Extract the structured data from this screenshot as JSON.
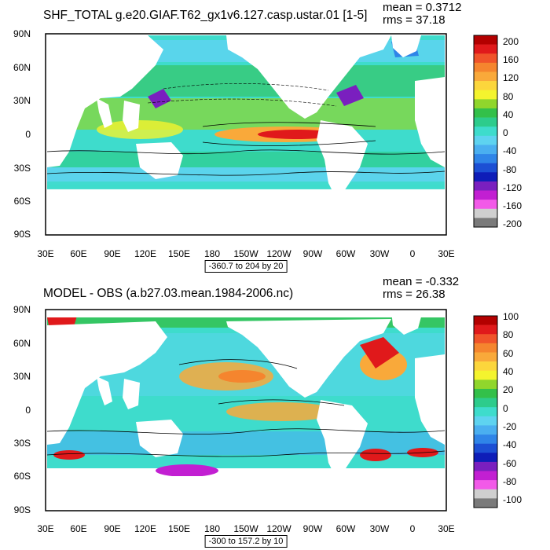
{
  "panels": [
    {
      "title": "SHF_TOTAL g.e20.GIAF.T62_gx1v6.127.casp.ustar.01 [1-5]",
      "mean_text": "mean = 0.3712",
      "rms_text": "rms = 37.18",
      "range_text": "-360.7 to 204 by 20",
      "colorbar": {
        "labels": [
          "200",
          "160",
          "120",
          "80",
          "40",
          "0",
          "-40",
          "-80",
          "-120",
          "-160",
          "-200"
        ],
        "colors": [
          "#b30000",
          "#e0191b",
          "#f0532a",
          "#f5852e",
          "#f9a93a",
          "#fcd63c",
          "#f4f42e",
          "#90d62c",
          "#33c04a",
          "#2dcc8c",
          "#3edccc",
          "#5ed3f0",
          "#4aaff0",
          "#2f85e8",
          "#1c4fd4",
          "#0e1db8",
          "#7a1fbf",
          "#c21fd2",
          "#f25ae8",
          "#cfcfcf",
          "#7a7a7a"
        ]
      }
    },
    {
      "title": "MODEL - OBS (a.b27.03.mean.1984-2006.nc)",
      "mean_text": "mean = -0.332",
      "rms_text": "rms = 26.38",
      "range_text": "-300 to 157.2 by 10",
      "colorbar": {
        "labels": [
          "100",
          "80",
          "60",
          "40",
          "20",
          "0",
          "-20",
          "-40",
          "-60",
          "-80",
          "-100"
        ],
        "colors": [
          "#b30000",
          "#e0191b",
          "#f0532a",
          "#f5852e",
          "#f9a93a",
          "#fcd63c",
          "#f4f42e",
          "#90d62c",
          "#33c04a",
          "#2dcc8c",
          "#3edccc",
          "#5ed3f0",
          "#4aaff0",
          "#2f85e8",
          "#1c4fd4",
          "#0e1db8",
          "#7a1fbf",
          "#c21fd2",
          "#f25ae8",
          "#cfcfcf",
          "#7a7a7a"
        ]
      }
    }
  ],
  "axes": {
    "y_labels": [
      "90N",
      "60N",
      "30N",
      "0",
      "30S",
      "60S",
      "90S"
    ],
    "x_labels": [
      "30E",
      "60E",
      "90E",
      "120E",
      "150E",
      "180",
      "150W",
      "120W",
      "90W",
      "60W",
      "30W",
      "0",
      "30E"
    ]
  }
}
